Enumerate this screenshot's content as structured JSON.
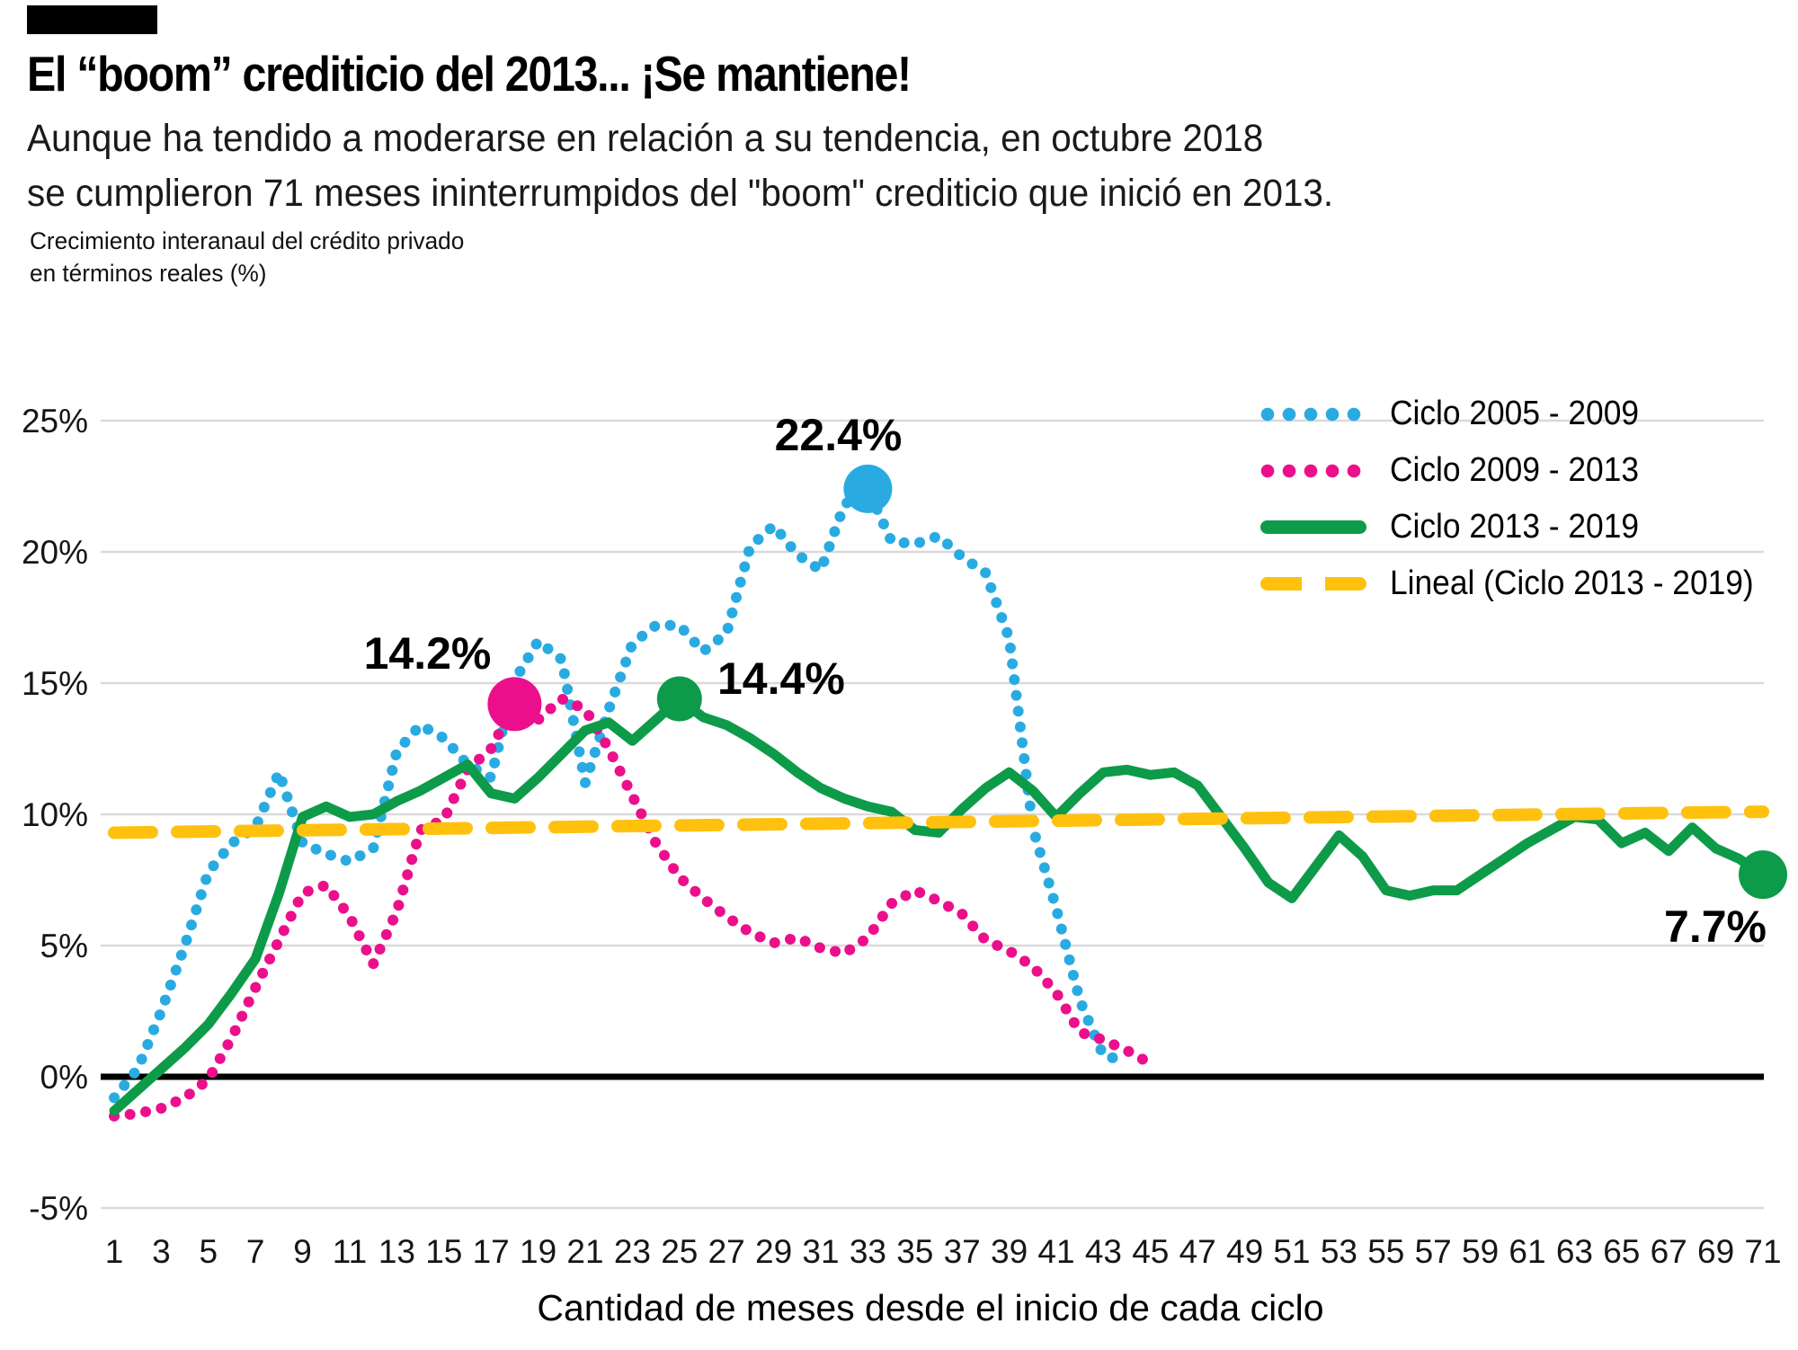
{
  "header": {
    "title": "El “boom” crediticio del 2013... ¡Se mantiene!",
    "subtitle_line1": "Aunque ha tendido a moderarse en relación a su tendencia, en octubre 2018",
    "subtitle_line2": "se cumplieron 71 meses ininterrumpidos del \"boom\" crediticio que inició en 2013."
  },
  "axes": {
    "y_axis_label_line1": "Crecimiento interanaul del crédito privado",
    "y_axis_label_line2": "en términos reales (%)",
    "x_axis_title": "Cantidad de meses desde el inicio de cada ciclo"
  },
  "legend": [
    {
      "label": "Ciclo 2005 - 2009",
      "style": "dotted",
      "color": "#29ABE2"
    },
    {
      "label": "Ciclo 2009 - 2013",
      "style": "dotted",
      "color": "#EC0F8C"
    },
    {
      "label": "Ciclo 2013 - 2019",
      "style": "solid",
      "color": "#0D9B49"
    },
    {
      "label": "Lineal (Ciclo 2013 - 2019)",
      "style": "dashed",
      "color": "#FFC10E"
    }
  ],
  "annotations": [
    {
      "label": "22.4%",
      "series_index": 0,
      "month": 33,
      "value": 22.4
    },
    {
      "label": "14.2%",
      "series_index": 1,
      "month": 18,
      "value": 14.2
    },
    {
      "label": "14.4%",
      "series_index": 2,
      "month": 25,
      "value": 14.4
    },
    {
      "label": "7.7%",
      "series_index": 2,
      "month": 71,
      "value": 7.7
    }
  ],
  "colors": {
    "cycle_2005_2009": "#29ABE2",
    "cycle_2009_2013": "#EC0F8C",
    "cycle_2013_2019": "#0D9B49",
    "trendline": "#FFC10E",
    "gridline": "#dadada",
    "zero_line": "#000000"
  },
  "chart_data": {
    "type": "line",
    "x_axis_title": "Cantidad de meses desde el inicio de cada ciclo",
    "y_axis_label": "Crecimiento interanaul del crédito privado en términos reales (%)",
    "x_unit": "months_since_cycle_start",
    "xlim": [
      1,
      71
    ],
    "ylim": [
      -5,
      25
    ],
    "grid": true,
    "legend_position": "top-right",
    "x_ticks": [
      1,
      3,
      5,
      7,
      9,
      11,
      13,
      15,
      17,
      19,
      21,
      23,
      25,
      27,
      29,
      31,
      33,
      35,
      37,
      39,
      41,
      43,
      45,
      47,
      49,
      51,
      53,
      55,
      57,
      59,
      61,
      63,
      65,
      67,
      69,
      71
    ],
    "y_ticks": [
      {
        "label": "25%",
        "value": 25
      },
      {
        "label": "20%",
        "value": 20
      },
      {
        "label": "15%",
        "value": 15
      },
      {
        "label": "10%",
        "value": 10
      },
      {
        "label": "5%",
        "value": 5
      },
      {
        "label": "0%",
        "value": 0
      },
      {
        "label": "-5%",
        "value": -5
      }
    ],
    "series": [
      {
        "name": "Ciclo 2005 - 2009",
        "color": "#29ABE2",
        "line_style": "dotted",
        "start_month": 1,
        "values": [
          -0.8,
          0.3,
          2.5,
          5.0,
          7.8,
          8.9,
          9.5,
          11.6,
          8.9,
          8.5,
          8.2,
          8.7,
          12.4,
          13.4,
          12.9,
          11.9,
          11.4,
          15.1,
          16.6,
          15.9,
          11.2,
          14.0,
          16.5,
          17.2,
          17.2,
          16.2,
          16.9,
          20.2,
          21.0,
          19.9,
          19.3,
          21.8,
          22.4,
          20.4,
          20.3,
          20.6,
          19.8,
          19.2,
          16.7,
          9.5,
          6.4,
          2.9,
          0.8,
          0.6
        ]
      },
      {
        "name": "Ciclo 2009 - 2013",
        "color": "#EC0F8C",
        "line_style": "dotted",
        "start_month": 1,
        "values": [
          -1.5,
          -1.4,
          -1.2,
          -0.8,
          -0.1,
          1.5,
          3.4,
          5.2,
          7.0,
          7.3,
          6.1,
          4.3,
          6.3,
          9.4,
          9.8,
          11.7,
          12.5,
          14.2,
          13.6,
          14.4,
          14.0,
          12.5,
          10.7,
          8.9,
          7.6,
          6.8,
          6.1,
          5.5,
          5.1,
          5.3,
          4.9,
          4.7,
          5.3,
          6.6,
          7.1,
          6.7,
          6.2,
          5.2,
          4.8,
          4.2,
          3.2,
          1.7,
          1.4,
          1.0,
          0.5
        ]
      },
      {
        "name": "Ciclo 2013 - 2019",
        "color": "#0D9B49",
        "line_style": "solid",
        "start_month": 1,
        "values": [
          -1.3,
          -0.5,
          0.3,
          1.1,
          2.0,
          3.2,
          4.5,
          7.0,
          9.9,
          10.3,
          9.9,
          10.0,
          10.5,
          10.9,
          11.4,
          11.9,
          10.8,
          10.6,
          11.4,
          12.3,
          13.2,
          13.5,
          12.8,
          13.6,
          14.4,
          13.7,
          13.4,
          12.9,
          12.3,
          11.6,
          11.0,
          10.6,
          10.3,
          10.1,
          9.4,
          9.3,
          10.2,
          11.0,
          11.6,
          10.9,
          9.9,
          10.8,
          11.6,
          11.7,
          11.5,
          11.6,
          11.1,
          9.9,
          8.7,
          7.4,
          6.8,
          8.0,
          9.2,
          8.4,
          7.1,
          6.9,
          7.1,
          7.1,
          7.7,
          8.3,
          8.9,
          9.4,
          9.9,
          9.8,
          8.9,
          9.3,
          8.6,
          9.5,
          8.7,
          8.3,
          7.7
        ]
      }
    ],
    "trendline": {
      "name": "Lineal (Ciclo 2013 - 2019)",
      "color": "#FFC10E",
      "line_style": "dashed",
      "points": [
        [
          1,
          9.3
        ],
        [
          71,
          10.1
        ]
      ]
    }
  }
}
